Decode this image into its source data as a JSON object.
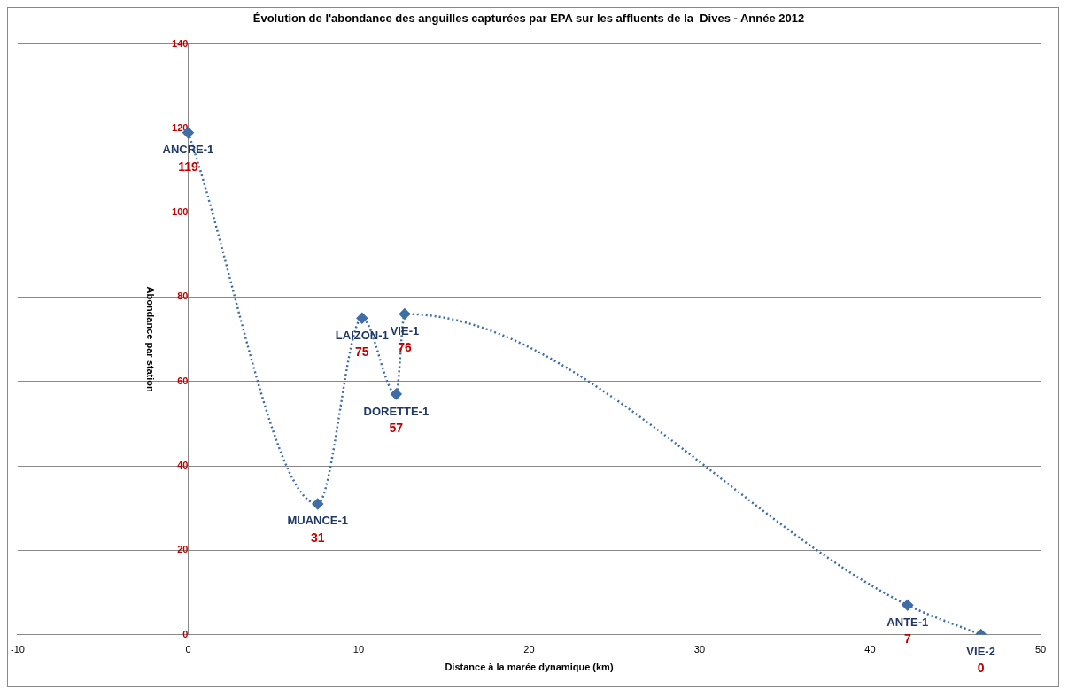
{
  "chart_data": {
    "type": "line",
    "title": "Évolution de l'abondance des anguilles capturées par EPA sur les affluents de la  Dives - Année 2012",
    "xlabel": "Distance à la marée dynamique (km)",
    "ylabel": "Abondance par station",
    "x": [
      0,
      7.6,
      10.2,
      12.2,
      12.7,
      42.2,
      46.5
    ],
    "series": [
      {
        "color": "#3f6ea6",
        "values": [
          119,
          31,
          75,
          57,
          76,
          7,
          0
        ]
      }
    ],
    "annotations": [
      {
        "text": "ANCRE-1",
        "x": 0,
        "y": 119
      },
      {
        "text": "MUANCE-1",
        "x": 7.6,
        "y": 31
      },
      {
        "text": "LAIZON-1",
        "x": 10.2,
        "y": 75
      },
      {
        "text": "DORETTE-1",
        "x": 12.2,
        "y": 57
      },
      {
        "text": "VIE-1",
        "x": 12.7,
        "y": 76
      },
      {
        "text": "ANTE-1",
        "x": 42.2,
        "y": 7
      },
      {
        "text": "VIE-2",
        "x": 46.5,
        "y": 0
      }
    ],
    "data_labels": true,
    "marker": "diamond",
    "line_style": "dotted",
    "grid": "y",
    "legend": false,
    "xlim": [
      -10,
      50
    ],
    "xticks": [
      -10,
      0,
      10,
      20,
      30,
      40,
      50
    ],
    "ylim": [
      0,
      140
    ],
    "yticks": [
      0,
      20,
      40,
      60,
      80,
      100,
      120,
      140
    ]
  }
}
